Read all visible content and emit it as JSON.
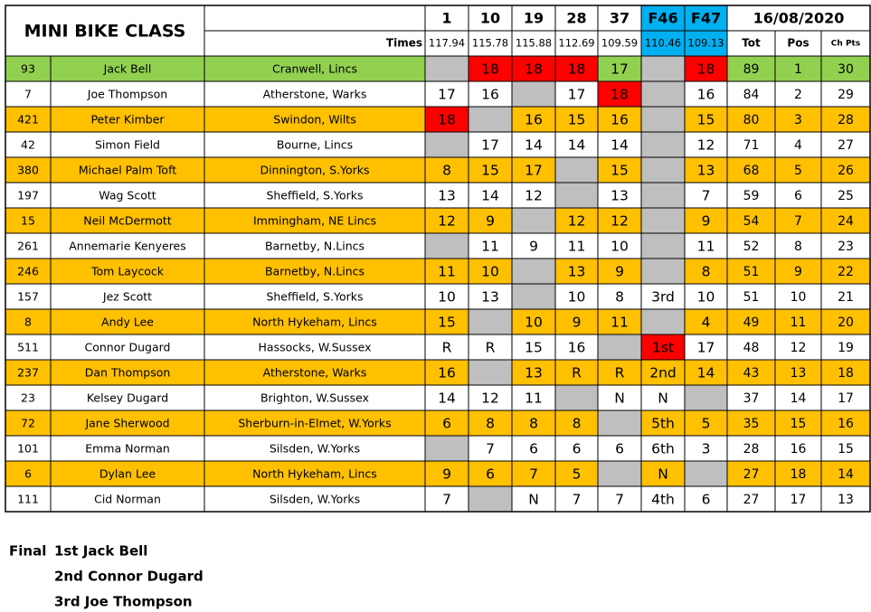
{
  "header": {
    "title": "MINI BIKE CLASS",
    "times_label": "Times",
    "date": "16/08/2020",
    "races": [
      {
        "label": 1,
        "time": 117.94
      },
      {
        "label": 10,
        "time": 115.78
      },
      {
        "label": 19,
        "time": 115.88
      },
      {
        "label": 28,
        "time": 112.69
      },
      {
        "label": 37,
        "time": 109.59
      },
      {
        "label": "F46",
        "time": 110.46,
        "fill": "#00b0f0"
      },
      {
        "label": "F47",
        "time": 109.13,
        "fill": "#00b0f0"
      }
    ],
    "totals": [
      "Tot",
      "Pos",
      "Ch Pts"
    ]
  },
  "table": {
    "empty_fill": "#bfbfbf",
    "highlight_fill": "#ff0000",
    "rows": [
      {
        "fill": "#92d050",
        "red": [
          4,
          5,
          6,
          9
        ],
        "cells": [
          93,
          "Jack Bell",
          "Cranwell, Lincs",
          null,
          18,
          18,
          18,
          17,
          null,
          18,
          89,
          1,
          30
        ]
      },
      {
        "fill": "#ffffff",
        "red": [
          7
        ],
        "cells": [
          7,
          "Joe Thompson",
          "Atherstone, Warks",
          17,
          16,
          null,
          17,
          18,
          null,
          16,
          84,
          2,
          29
        ]
      },
      {
        "fill": "#ffc000",
        "red": [
          3
        ],
        "cells": [
          421,
          "Peter Kimber",
          "Swindon, Wilts",
          18,
          null,
          16,
          15,
          16,
          null,
          15,
          80,
          3,
          28
        ]
      },
      {
        "fill": "#ffffff",
        "red": [],
        "cells": [
          42,
          "Simon Field",
          "Bourne, Lincs",
          null,
          17,
          14,
          14,
          14,
          null,
          12,
          71,
          4,
          27
        ]
      },
      {
        "fill": "#ffc000",
        "red": [],
        "cells": [
          380,
          "Michael Palm Toft",
          "Dinnington, S.Yorks",
          8,
          15,
          17,
          null,
          15,
          null,
          13,
          68,
          5,
          26
        ]
      },
      {
        "fill": "#ffffff",
        "red": [],
        "cells": [
          197,
          "Wag Scott",
          "Sheffield, S.Yorks",
          13,
          14,
          12,
          null,
          13,
          null,
          7,
          59,
          6,
          25
        ]
      },
      {
        "fill": "#ffc000",
        "red": [],
        "cells": [
          15,
          "Neil McDermott",
          "Immingham, NE Lincs",
          12,
          9,
          null,
          12,
          12,
          null,
          9,
          54,
          7,
          24
        ]
      },
      {
        "fill": "#ffffff",
        "red": [],
        "cells": [
          261,
          "Annemarie Kenyeres",
          "Barnetby, N.Lincs",
          null,
          11,
          9,
          11,
          10,
          null,
          11,
          52,
          8,
          23
        ]
      },
      {
        "fill": "#ffc000",
        "red": [],
        "cells": [
          246,
          "Tom Laycock",
          "Barnetby, N.Lincs",
          11,
          10,
          null,
          13,
          9,
          null,
          8,
          51,
          9,
          22
        ]
      },
      {
        "fill": "#ffffff",
        "red": [],
        "cells": [
          157,
          "Jez Scott",
          "Sheffield, S.Yorks",
          10,
          13,
          null,
          10,
          8,
          "3rd",
          10,
          51,
          10,
          21
        ]
      },
      {
        "fill": "#ffc000",
        "red": [],
        "cells": [
          8,
          "Andy Lee",
          "North Hykeham, Lincs",
          15,
          null,
          10,
          9,
          11,
          null,
          4,
          49,
          11,
          20
        ]
      },
      {
        "fill": "#ffffff",
        "red": [
          8
        ],
        "cells": [
          511,
          "Connor Dugard",
          "Hassocks, W.Sussex",
          "R",
          "R",
          15,
          16,
          null,
          "1st",
          17,
          48,
          12,
          19
        ]
      },
      {
        "fill": "#ffc000",
        "red": [],
        "cells": [
          237,
          "Dan Thompson",
          "Atherstone, Warks",
          16,
          null,
          13,
          "R",
          "R",
          "2nd",
          14,
          43,
          13,
          18
        ]
      },
      {
        "fill": "#ffffff",
        "red": [],
        "cells": [
          23,
          "Kelsey Dugard",
          "Brighton, W.Sussex",
          14,
          12,
          11,
          null,
          "N",
          "N",
          null,
          37,
          14,
          17
        ]
      },
      {
        "fill": "#ffc000",
        "red": [],
        "cells": [
          72,
          "Jane Sherwood",
          "Sherburn-in-Elmet, W.Yorks",
          6,
          8,
          8,
          8,
          null,
          "5th",
          5,
          35,
          15,
          16
        ]
      },
      {
        "fill": "#ffffff",
        "red": [],
        "cells": [
          101,
          "Emma Norman",
          "Silsden, W.Yorks",
          null,
          7,
          6,
          6,
          6,
          "6th",
          3,
          28,
          16,
          15
        ]
      },
      {
        "fill": "#ffc000",
        "red": [],
        "cells": [
          6,
          "Dylan Lee",
          "North Hykeham, Lincs",
          9,
          6,
          7,
          5,
          null,
          "N",
          null,
          27,
          18,
          14
        ]
      },
      {
        "fill": "#ffffff",
        "red": [],
        "cells": [
          111,
          "Cid Norman",
          "Silsden, W.Yorks",
          7,
          null,
          "N",
          7,
          7,
          "4th",
          6,
          27,
          17,
          13
        ]
      }
    ]
  },
  "final": {
    "label": "Final",
    "places": [
      "1st Jack Bell",
      "2nd Connor Dugard",
      "3rd Joe Thompson"
    ]
  }
}
